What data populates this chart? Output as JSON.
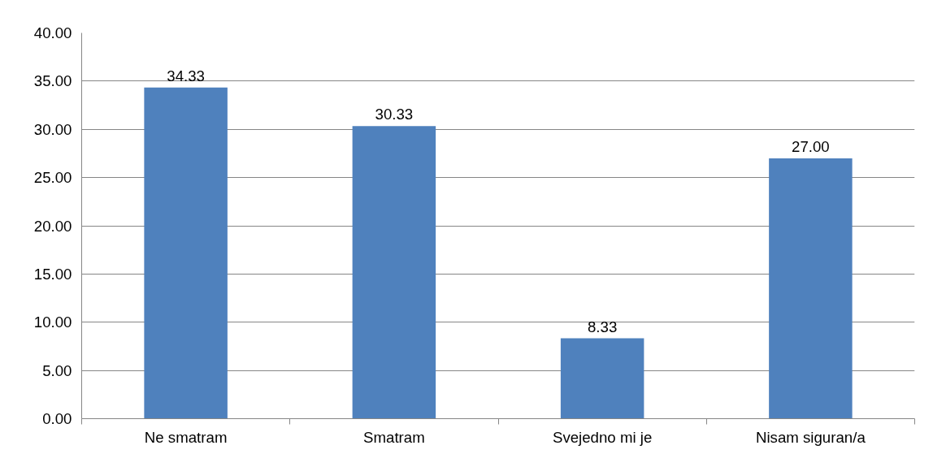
{
  "chart_data": {
    "type": "bar",
    "categories": [
      "Ne smatram",
      "Smatram",
      "Svejedno mi je",
      "Nisam siguran/a"
    ],
    "values": [
      34.33,
      30.33,
      8.33,
      27.0
    ],
    "value_labels": [
      "34.33",
      "30.33",
      "8.33",
      "27.00"
    ],
    "color": "#4f81bd",
    "ylim": [
      0,
      40
    ],
    "yticks": [
      {
        "value": 0,
        "label": "0.00"
      },
      {
        "value": 5,
        "label": "5.00"
      },
      {
        "value": 10,
        "label": "10.00"
      },
      {
        "value": 15,
        "label": "15.00"
      },
      {
        "value": 20,
        "label": "20.00"
      },
      {
        "value": 25,
        "label": "25.00"
      },
      {
        "value": 30,
        "label": "30.00"
      },
      {
        "value": 35,
        "label": "35.00"
      },
      {
        "value": 40,
        "label": "40.00"
      }
    ],
    "grid": "y"
  }
}
